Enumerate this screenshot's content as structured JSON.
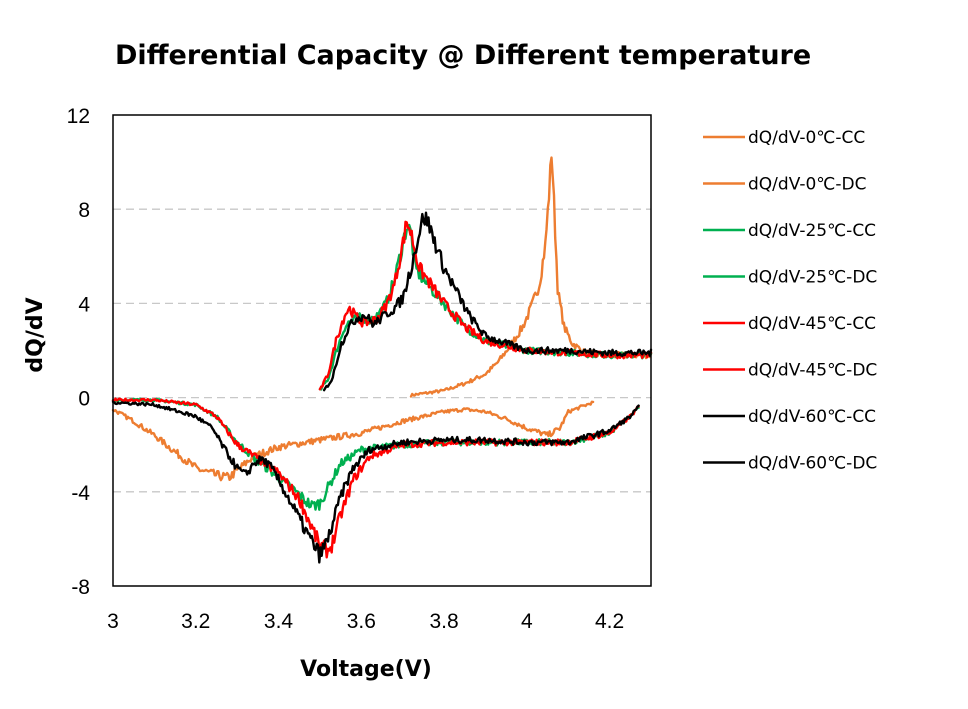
{
  "chart_data": {
    "type": "line",
    "title": "Differential Capacity @ Different temperature",
    "xlabel": "Voltage(V)",
    "ylabel": "dQ/dV",
    "xlim": [
      3,
      4.3
    ],
    "ylim": [
      -8,
      12
    ],
    "x_ticks": [
      3,
      3.2,
      3.4,
      3.6,
      3.8,
      4,
      4.2
    ],
    "x_tick_labels": [
      "3",
      "3.2",
      "3.4",
      "3.6",
      "3.8",
      "4",
      "4.2"
    ],
    "y_ticks": [
      12,
      8,
      4,
      0,
      -4,
      -8
    ],
    "y_tick_labels": [
      "12",
      "8",
      "4",
      "0",
      "-4",
      "-8"
    ],
    "grid": "horizontal-dashed",
    "legend_position": "right",
    "series": [
      {
        "name": "dQ/dV-0℃-CC",
        "color": "#ED7D31",
        "x": [
          3.72,
          3.8,
          3.85,
          3.9,
          3.93,
          3.96,
          3.99,
          4.01,
          4.03,
          4.045,
          4.055,
          4.06,
          4.065,
          4.075,
          4.09,
          4.11,
          4.14,
          4.18,
          4.22,
          4.26,
          4.3
        ],
        "y": [
          0.1,
          0.3,
          0.6,
          1.0,
          1.5,
          2.2,
          3.0,
          3.8,
          4.8,
          6.5,
          9.0,
          10.6,
          8.5,
          4.5,
          3.0,
          2.3,
          1.9,
          1.8,
          1.8,
          1.8,
          1.8
        ]
      },
      {
        "name": "dQ/dV-0℃-DC",
        "color": "#ED7D31",
        "x": [
          3.0,
          3.05,
          3.1,
          3.15,
          3.2,
          3.25,
          3.28,
          3.3,
          3.34,
          3.4,
          3.5,
          3.6,
          3.7,
          3.8,
          3.85,
          3.9,
          3.95,
          4.0,
          4.05,
          4.08,
          4.1,
          4.13,
          4.16
        ],
        "y": [
          -0.5,
          -1.0,
          -1.6,
          -2.3,
          -3.0,
          -3.3,
          -3.4,
          -3.1,
          -2.5,
          -2.1,
          -1.8,
          -1.5,
          -1.0,
          -0.6,
          -0.5,
          -0.6,
          -0.9,
          -1.3,
          -1.6,
          -1.3,
          -0.6,
          -0.4,
          -0.2
        ]
      },
      {
        "name": "dQ/dV-25℃-CC",
        "color": "#00B050",
        "x": [
          3.5,
          3.52,
          3.54,
          3.56,
          3.57,
          3.58,
          3.6,
          3.62,
          3.64,
          3.66,
          3.68,
          3.7,
          3.71,
          3.72,
          3.73,
          3.75,
          3.8,
          3.85,
          3.9,
          4.0,
          4.1,
          4.2,
          4.3
        ],
        "y": [
          0.3,
          0.8,
          2.0,
          3.0,
          3.2,
          3.3,
          3.4,
          3.3,
          3.5,
          4.0,
          5.0,
          6.5,
          7.3,
          7.0,
          5.5,
          5.0,
          4.0,
          3.0,
          2.4,
          2.0,
          1.9,
          1.8,
          1.8
        ]
      },
      {
        "name": "dQ/dV-25℃-DC",
        "color": "#00B050",
        "x": [
          3.0,
          3.1,
          3.2,
          3.25,
          3.3,
          3.35,
          3.38,
          3.4,
          3.43,
          3.46,
          3.48,
          3.5,
          3.52,
          3.55,
          3.6,
          3.7,
          3.8,
          3.9,
          4.0,
          4.1,
          4.2,
          4.25,
          4.27
        ],
        "y": [
          -0.1,
          -0.1,
          -0.3,
          -0.8,
          -1.9,
          -2.7,
          -3.1,
          -3.4,
          -3.8,
          -4.3,
          -4.6,
          -4.5,
          -3.8,
          -2.8,
          -2.2,
          -2.0,
          -1.9,
          -1.9,
          -1.9,
          -1.9,
          -1.5,
          -0.8,
          -0.4
        ]
      },
      {
        "name": "dQ/dV-45℃-CC",
        "color": "#FF0000",
        "x": [
          3.5,
          3.52,
          3.54,
          3.56,
          3.57,
          3.58,
          3.6,
          3.62,
          3.64,
          3.66,
          3.68,
          3.7,
          3.71,
          3.72,
          3.74,
          3.76,
          3.8,
          3.85,
          3.9,
          4.0,
          4.1,
          4.2,
          4.3
        ],
        "y": [
          0.3,
          1.0,
          2.5,
          3.5,
          3.8,
          3.6,
          3.2,
          3.2,
          3.4,
          3.9,
          4.8,
          6.5,
          7.5,
          7.0,
          5.5,
          5.0,
          4.0,
          3.0,
          2.4,
          2.0,
          1.9,
          1.8,
          1.8
        ]
      },
      {
        "name": "dQ/dV-45℃-DC",
        "color": "#FF0000",
        "x": [
          3.0,
          3.1,
          3.2,
          3.25,
          3.3,
          3.35,
          3.4,
          3.45,
          3.48,
          3.5,
          3.52,
          3.53,
          3.55,
          3.58,
          3.62,
          3.7,
          3.8,
          3.9,
          4.0,
          4.1,
          4.2,
          4.25,
          4.27
        ],
        "y": [
          -0.1,
          -0.1,
          -0.3,
          -0.8,
          -2.0,
          -2.6,
          -3.2,
          -4.3,
          -5.5,
          -6.3,
          -6.5,
          -6.2,
          -5.0,
          -3.5,
          -2.5,
          -2.0,
          -1.9,
          -1.9,
          -1.9,
          -1.9,
          -1.5,
          -0.8,
          -0.4
        ]
      },
      {
        "name": "dQ/dV-60℃-CC",
        "color": "#000000",
        "x": [
          3.51,
          3.53,
          3.55,
          3.57,
          3.59,
          3.61,
          3.63,
          3.65,
          3.68,
          3.7,
          3.72,
          3.74,
          3.75,
          3.76,
          3.78,
          3.8,
          3.83,
          3.86,
          3.9,
          4.0,
          4.1,
          4.2,
          4.3
        ],
        "y": [
          0.3,
          0.8,
          2.2,
          3.0,
          3.4,
          3.5,
          3.1,
          3.4,
          3.8,
          4.2,
          5.5,
          7.0,
          7.7,
          7.5,
          6.5,
          5.5,
          4.5,
          3.5,
          2.6,
          2.0,
          2.0,
          1.9,
          1.9
        ]
      },
      {
        "name": "dQ/dV-60℃-DC",
        "color": "#000000",
        "x": [
          3.0,
          3.1,
          3.2,
          3.24,
          3.27,
          3.3,
          3.32,
          3.34,
          3.36,
          3.38,
          3.4,
          3.44,
          3.47,
          3.5,
          3.52,
          3.55,
          3.58,
          3.62,
          3.7,
          3.8,
          3.9,
          4.0,
          4.1,
          4.2,
          4.25,
          4.27
        ],
        "y": [
          -0.2,
          -0.3,
          -0.8,
          -1.3,
          -2.2,
          -3.0,
          -3.3,
          -2.8,
          -2.6,
          -2.9,
          -3.5,
          -4.8,
          -5.8,
          -6.7,
          -6.0,
          -4.2,
          -3.0,
          -2.2,
          -1.9,
          -1.8,
          -1.8,
          -1.9,
          -1.9,
          -1.4,
          -0.8,
          -0.4
        ]
      }
    ]
  }
}
